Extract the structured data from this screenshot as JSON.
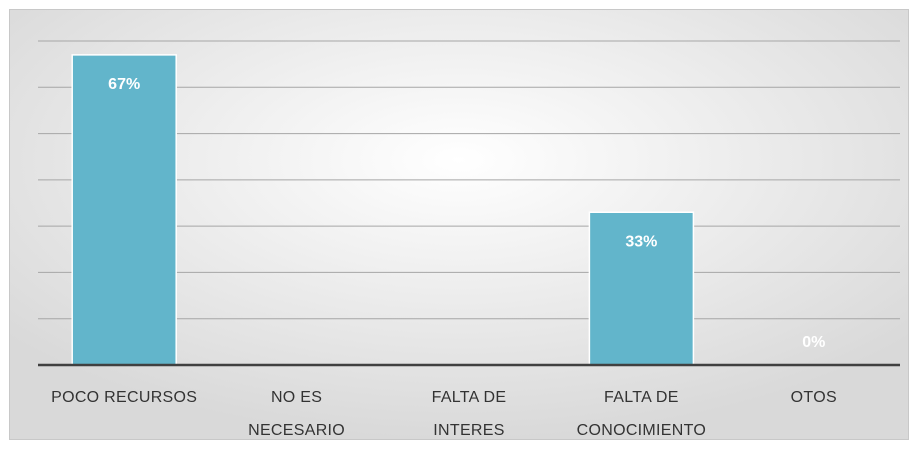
{
  "chart_data": {
    "type": "bar",
    "categories": [
      "POCO RECURSOS",
      "NO ES NECESARIO",
      "FALTA DE INTERES",
      "FALTA DE CONOCIMIENTO",
      "OTOS"
    ],
    "values": [
      67,
      0,
      0,
      33,
      0
    ],
    "value_labels": [
      "67%",
      null,
      null,
      "33%",
      "0%"
    ],
    "color": "#62b5cb",
    "ylim": [
      0,
      70
    ],
    "yticks": [
      0,
      10,
      20,
      30,
      40,
      50,
      60,
      70
    ],
    "grid": true
  }
}
